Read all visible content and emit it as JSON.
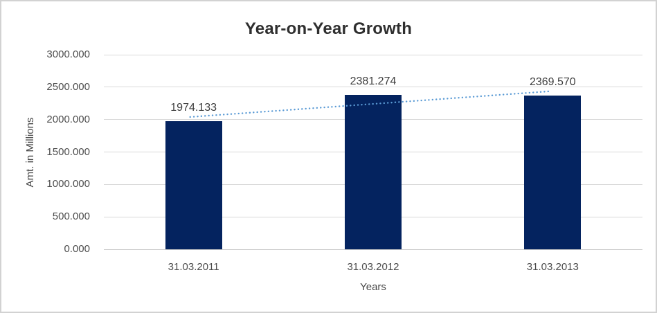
{
  "chart_data": {
    "type": "bar",
    "title": "Year-on-Year Growth",
    "xlabel": "Years",
    "ylabel": "Amt. in Millions",
    "categories": [
      "31.03.2011",
      "31.03.2012",
      "31.03.2013"
    ],
    "values": [
      1974.133,
      2381.274,
      2369.57
    ],
    "data_labels": [
      "1974.133",
      "2381.274",
      "2369.570"
    ],
    "ylim": [
      0,
      3000
    ],
    "ytick_step": 500,
    "ytick_labels": [
      "0.000",
      "500.000",
      "1000.000",
      "1500.000",
      "2000.000",
      "2500.000",
      "3000.000"
    ],
    "grid": true,
    "legend": false,
    "bar_color": "#04235F",
    "gridline_color": "#D9D9D9",
    "axis_line_color": "#C8C8C8",
    "trendline": {
      "type": "linear",
      "style": "dotted",
      "color": "#5B9BD5"
    }
  }
}
